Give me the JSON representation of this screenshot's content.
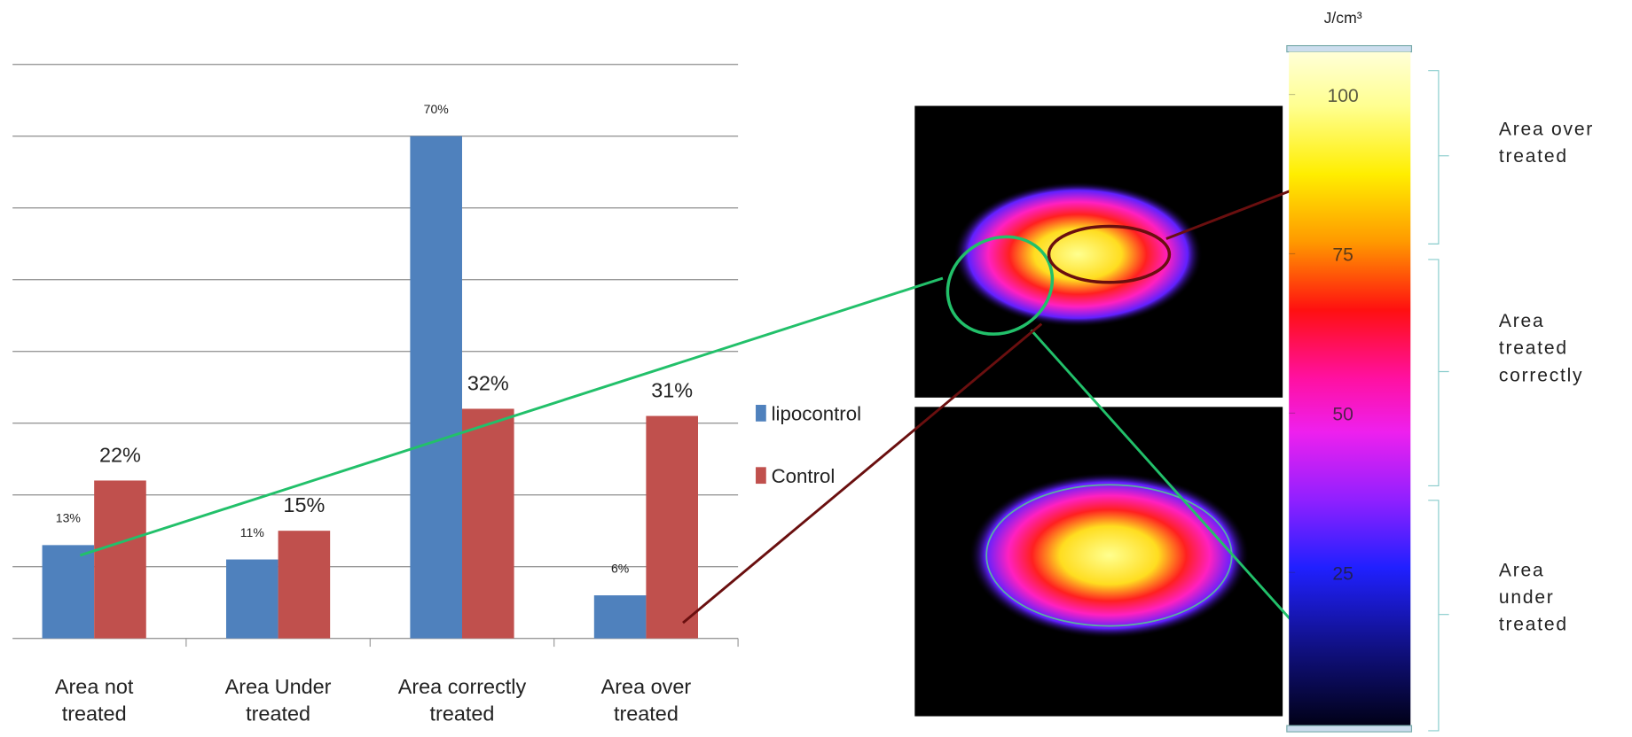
{
  "chart_data": [
    {
      "type": "bar",
      "categories": [
        "Area not treated",
        "Area Under treated",
        "Area correctly treated",
        "Area over treated"
      ],
      "series": [
        {
          "name": "lipocontrol",
          "color": "#4f81bd",
          "values": [
            13,
            11,
            70,
            6
          ],
          "value_labels": [
            "13%",
            "11%",
            "70%",
            "6%"
          ]
        },
        {
          "name": "Control",
          "color": "#c0504d",
          "values": [
            22,
            15,
            32,
            31
          ],
          "value_labels": [
            "22%",
            "15%",
            "32%",
            "31%"
          ]
        }
      ],
      "ylim": [
        0,
        80
      ],
      "yticks": [
        0,
        10,
        20,
        30,
        40,
        50,
        60,
        70,
        80
      ],
      "grid": true,
      "legend": "right"
    },
    {
      "type": "colorbar",
      "title": "J/cm³",
      "lim": [
        0,
        107
      ],
      "ticks": [
        25,
        50,
        75,
        100
      ],
      "regions": [
        "Area over treated",
        "Area treated correctly",
        "Area under treated"
      ]
    }
  ]
}
